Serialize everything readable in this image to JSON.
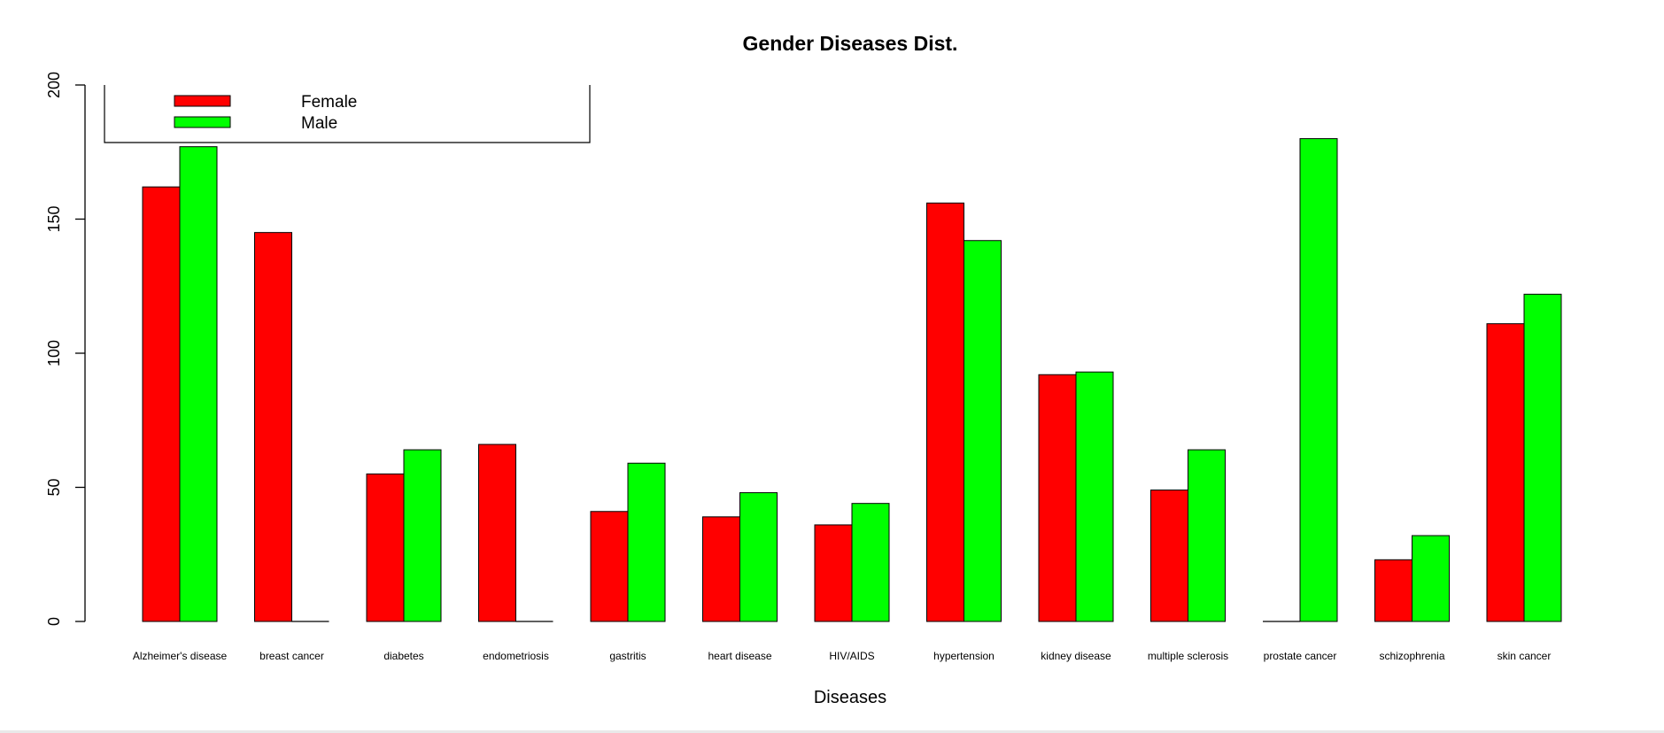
{
  "chart_data": {
    "type": "bar",
    "title": "Gender Diseases Dist.",
    "xlabel": "Diseases",
    "ylabel": "",
    "ylim": [
      0,
      200
    ],
    "yticks": [
      0,
      50,
      100,
      150,
      200
    ],
    "grid": false,
    "legend_position": "top-left",
    "categories": [
      "Alzheimer's disease",
      "breast cancer",
      "diabetes",
      "endometriosis",
      "gastritis",
      "heart disease",
      "HIV/AIDS",
      "hypertension",
      "kidney disease",
      "multiple sclerosis",
      "prostate cancer",
      "schizophrenia",
      "skin cancer"
    ],
    "series": [
      {
        "name": "Female",
        "color": "#ff0000",
        "values": [
          162,
          145,
          55,
          66,
          41,
          39,
          36,
          156,
          92,
          49,
          0,
          23,
          111
        ]
      },
      {
        "name": "Male",
        "color": "#00ff00",
        "values": [
          177,
          0,
          64,
          0,
          59,
          48,
          44,
          142,
          93,
          64,
          180,
          32,
          122
        ]
      }
    ]
  }
}
